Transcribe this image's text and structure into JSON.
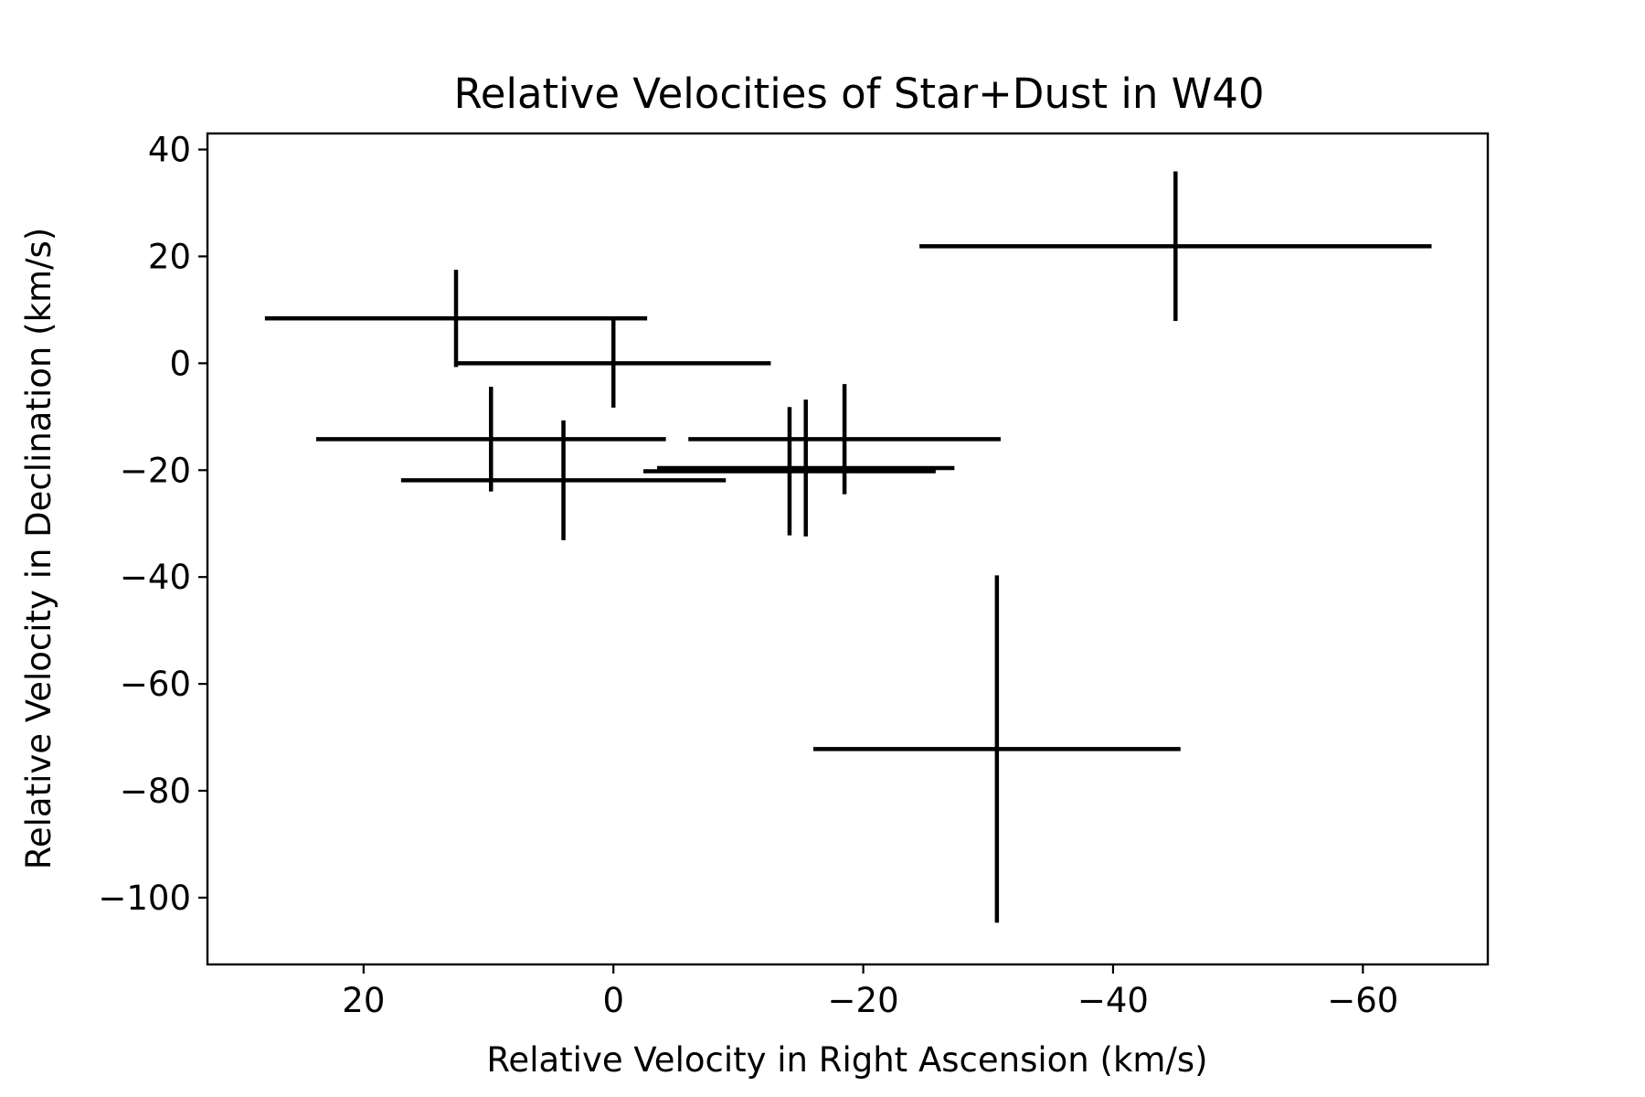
{
  "chart_data": {
    "type": "scatter",
    "title": "Relative Velocities of Star+Dust in W40",
    "xlabel": "Relative Velocity in Right Ascension (km/s)",
    "ylabel": "Relative Velocity in Declination (km/s)",
    "x_inverted": true,
    "xlim": [
      32.5,
      -70.0
    ],
    "ylim": [
      -112.5,
      43.0
    ],
    "xticks": [
      20,
      0,
      -20,
      -40,
      -60
    ],
    "yticks": [
      40,
      20,
      0,
      -20,
      -40,
      -60,
      -80,
      -100
    ],
    "grid": false,
    "legend": "none",
    "color": "#000000",
    "points": [
      {
        "x": 12.6,
        "y": 8.4,
        "xerr": 15.3,
        "yerr": 9.1
      },
      {
        "x": 0.0,
        "y": 0.0,
        "xerr": 12.6,
        "yerr": 8.3
      },
      {
        "x": -45.0,
        "y": 21.9,
        "xerr": 20.5,
        "yerr": 14.0
      },
      {
        "x": 9.8,
        "y": -14.2,
        "xerr": 14.0,
        "yerr": 9.8
      },
      {
        "x": 4.0,
        "y": -21.9,
        "xerr": 13.0,
        "yerr": 11.2
      },
      {
        "x": -14.1,
        "y": -20.2,
        "xerr": 11.7,
        "yerr": 12.0
      },
      {
        "x": -15.4,
        "y": -19.6,
        "xerr": 11.9,
        "yerr": 12.8
      },
      {
        "x": -18.5,
        "y": -14.2,
        "xerr": 12.5,
        "yerr": 10.3
      },
      {
        "x": -30.7,
        "y": -72.2,
        "xerr": 14.7,
        "yerr": 32.5
      }
    ]
  }
}
